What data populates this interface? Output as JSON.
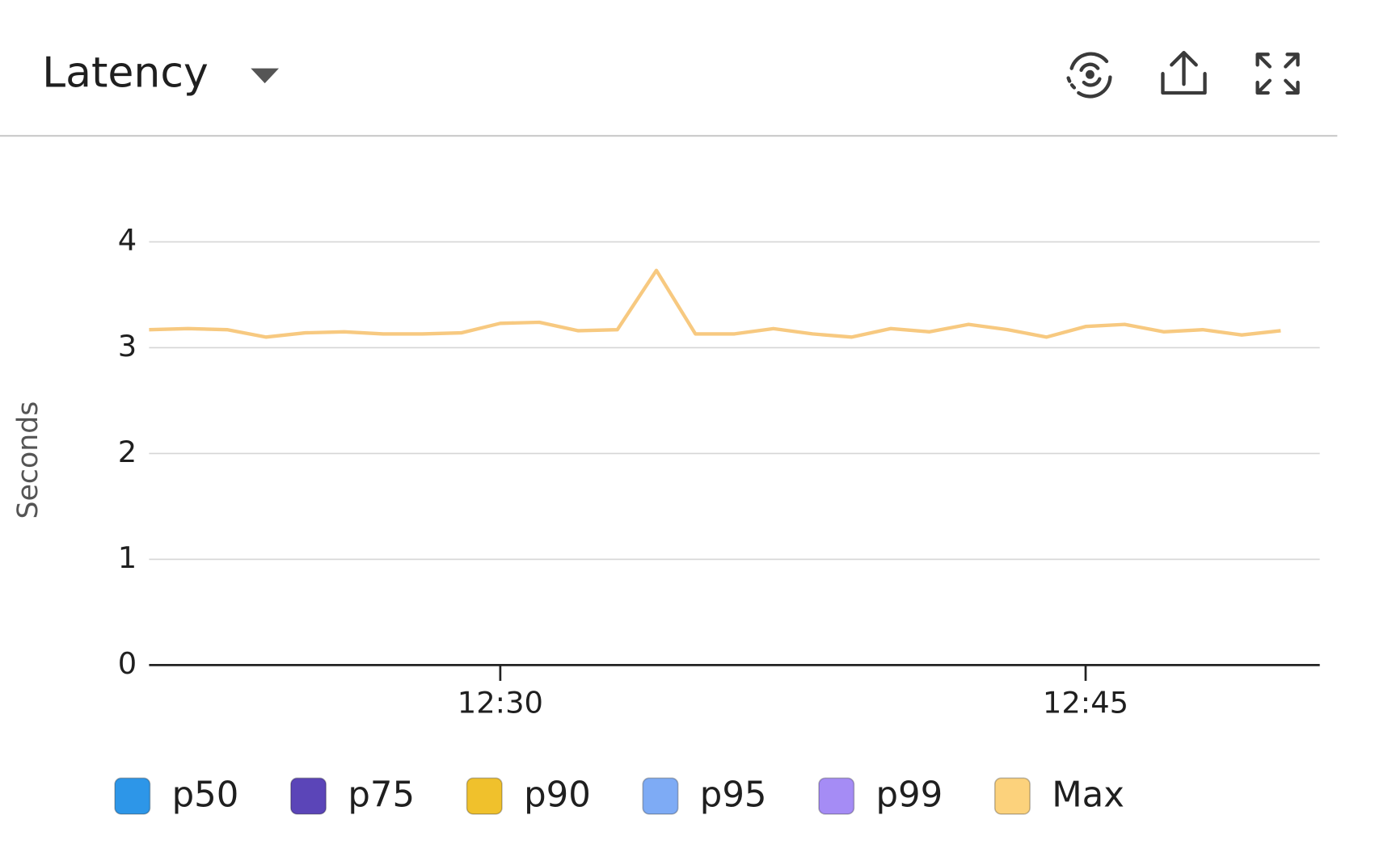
{
  "chart_data": {
    "type": "line",
    "title": "Latency",
    "ylabel": "Seconds",
    "x": [
      "12:21",
      "12:22",
      "12:23",
      "12:24",
      "12:25",
      "12:26",
      "12:27",
      "12:28",
      "12:29",
      "12:30",
      "12:31",
      "12:32",
      "12:33",
      "12:34",
      "12:35",
      "12:36",
      "12:37",
      "12:38",
      "12:39",
      "12:40",
      "12:41",
      "12:42",
      "12:43",
      "12:44",
      "12:45",
      "12:46",
      "12:47",
      "12:48",
      "12:49",
      "12:50"
    ],
    "series": [
      {
        "name": "Max",
        "color": "#f7c980",
        "values": [
          3.17,
          3.18,
          3.17,
          3.1,
          3.14,
          3.15,
          3.13,
          3.13,
          3.14,
          3.23,
          3.24,
          3.16,
          3.17,
          3.73,
          3.13,
          3.13,
          3.18,
          3.13,
          3.1,
          3.18,
          3.15,
          3.22,
          3.17,
          3.1,
          3.2,
          3.22,
          3.15,
          3.17,
          3.12,
          3.16
        ]
      }
    ],
    "legend": [
      {
        "name": "p50",
        "color": "#2d96e8"
      },
      {
        "name": "p75",
        "color": "#5b45b8"
      },
      {
        "name": "p90",
        "color": "#f0c12c"
      },
      {
        "name": "p95",
        "color": "#7eabf5"
      },
      {
        "name": "p99",
        "color": "#a58cf5"
      },
      {
        "name": "Max",
        "color": "#fcd27c"
      }
    ],
    "xlim": [
      "12:21",
      "12:51"
    ],
    "xticks": [
      "12:30",
      "12:45"
    ],
    "ylim": [
      0,
      4
    ],
    "yticks": [
      0,
      1,
      2,
      3,
      4
    ],
    "grid": true
  }
}
